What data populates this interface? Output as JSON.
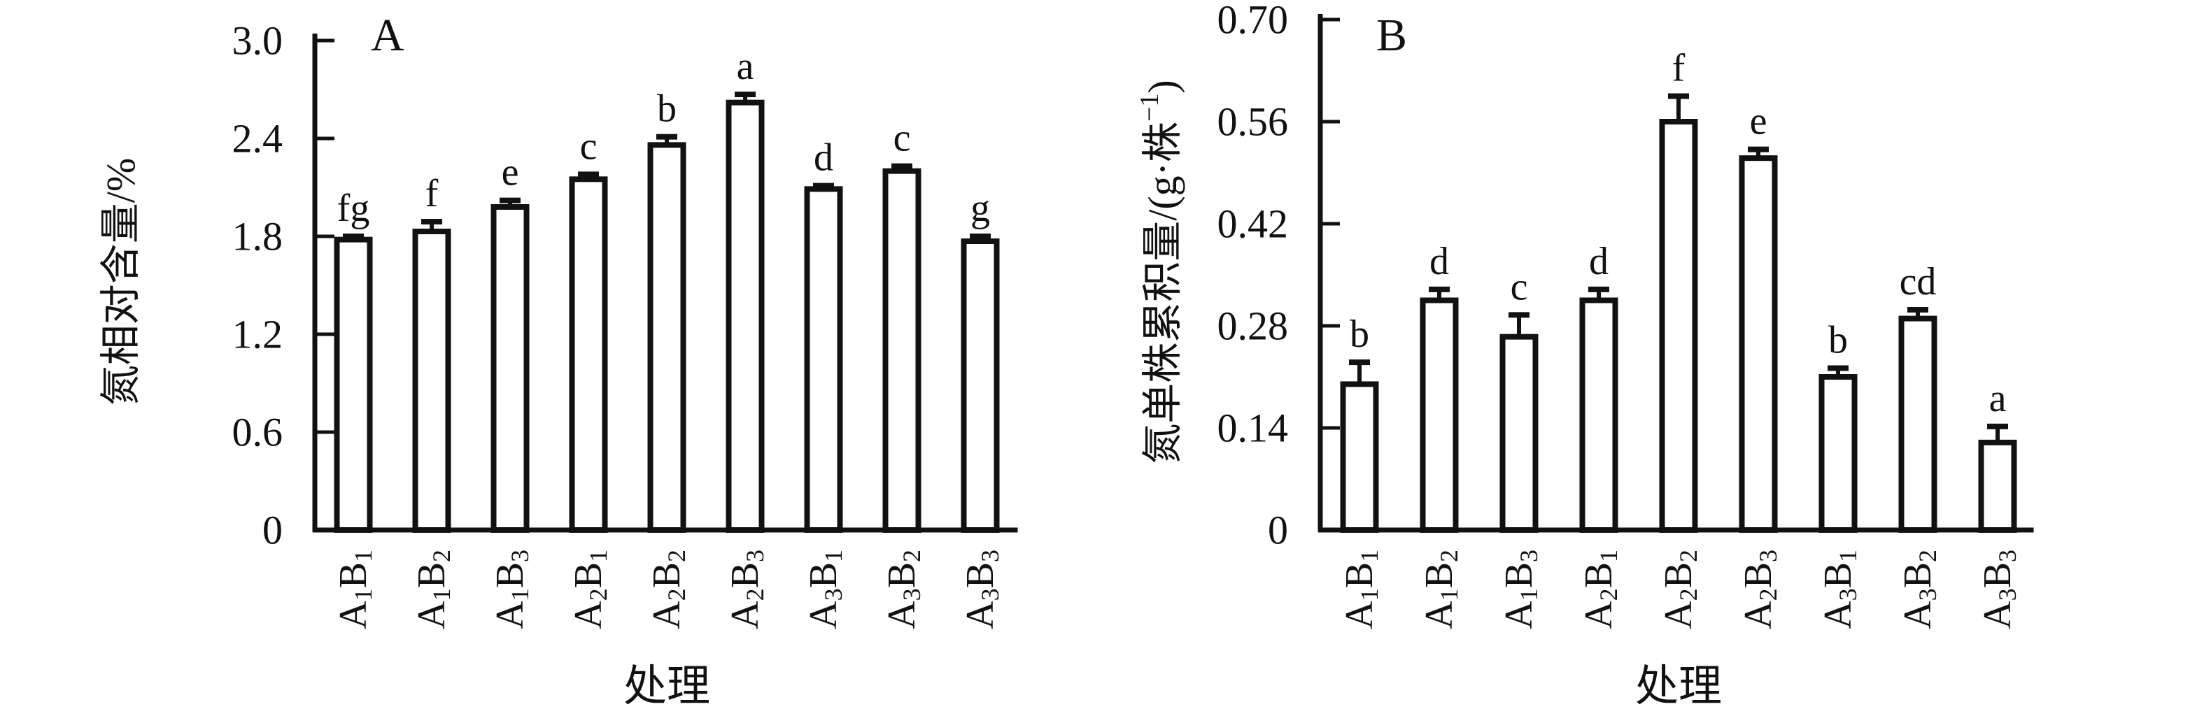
{
  "figure": {
    "background": "#ffffff",
    "ink_color": "#111111",
    "description_panels": [
      "A",
      "B"
    ]
  },
  "chart_data": [
    {
      "type": "bar",
      "panel": "A",
      "title": "",
      "xlabel": "处理",
      "ylabel": "氮相对含量/%",
      "ylabel_parts": [
        {
          "t": "氮相对含量/%"
        }
      ],
      "ylim": [
        0,
        3.0
      ],
      "yticks": [
        "0",
        "0.6",
        "1.2",
        "1.8",
        "2.4",
        "3.0"
      ],
      "grid": false,
      "legend": "none",
      "bar_fill": "#ffffff",
      "bar_stroke": "#111111",
      "categories": [
        "A1B1",
        "A1B2",
        "A1B3",
        "A2B1",
        "A2B2",
        "A2B3",
        "A3B1",
        "A3B2",
        "A3B3"
      ],
      "values": [
        1.78,
        1.83,
        1.98,
        2.15,
        2.36,
        2.62,
        2.09,
        2.2,
        1.77
      ],
      "errors": [
        0.02,
        0.06,
        0.04,
        0.03,
        0.05,
        0.05,
        0.02,
        0.03,
        0.03
      ],
      "sig_letters": [
        "fg",
        "f",
        "e",
        "c",
        "b",
        "a",
        "d",
        "c",
        "g"
      ]
    },
    {
      "type": "bar",
      "panel": "B",
      "title": "",
      "xlabel": "处理",
      "ylabel": "氮单株累积量/(g·株⁻¹)",
      "ylabel_parts": [
        {
          "t": "氮单株累积量/(g·株"
        },
        {
          "t": "−1",
          "style": "sup"
        },
        {
          "t": ")"
        }
      ],
      "ylim": [
        0,
        0.7
      ],
      "yticks": [
        "0",
        "0.14",
        "0.28",
        "0.42",
        "0.56",
        "0.70"
      ],
      "grid": false,
      "legend": "none",
      "bar_fill": "#ffffff",
      "bar_stroke": "#111111",
      "categories": [
        "A1B1",
        "A1B2",
        "A1B3",
        "A2B1",
        "A2B2",
        "A2B3",
        "A3B1",
        "A3B2",
        "A3B3"
      ],
      "values": [
        0.2,
        0.315,
        0.265,
        0.315,
        0.56,
        0.51,
        0.21,
        0.29,
        0.12
      ],
      "errors": [
        0.03,
        0.015,
        0.03,
        0.015,
        0.035,
        0.012,
        0.012,
        0.012,
        0.022
      ],
      "sig_letters": [
        "b",
        "d",
        "c",
        "d",
        "f",
        "e",
        "b",
        "cd",
        "a"
      ]
    }
  ]
}
